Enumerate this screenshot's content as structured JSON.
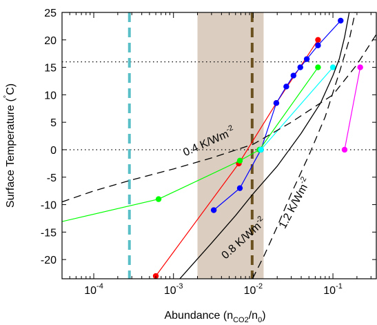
{
  "chart_data": {
    "type": "line",
    "xscale": "log",
    "xlim": [
      4e-05,
      0.35
    ],
    "ylim": [
      -23.5,
      25
    ],
    "x_tick_labels": [
      {
        "value": 0.0001,
        "base": "10",
        "exp": "-4"
      },
      {
        "value": 0.001,
        "base": "10",
        "exp": "-3"
      },
      {
        "value": 0.01,
        "base": "10",
        "exp": "-2"
      },
      {
        "value": 0.1,
        "base": "10",
        "exp": "-1"
      }
    ],
    "y_ticks": [
      -20,
      -15,
      -10,
      -5,
      0,
      5,
      10,
      15,
      20,
      25
    ],
    "ylabel": {
      "pre": "Surface Temperature (",
      "sup": "°",
      "post": "C)"
    },
    "xlabel": {
      "pre": "Abundance (n",
      "sub1": "CO2",
      "mid": "/n",
      "sub2": "0",
      "post": ")"
    },
    "colors": {
      "shade": "#dbcdbf",
      "cyan_dash": "#5bbfc8",
      "brown_dash": "#6b5120",
      "red": "#ff0000",
      "blue": "#0000ff",
      "green": "#00ff00",
      "cyan": "#00ffff",
      "magenta": "#ff00ff",
      "black": "#000000"
    },
    "shaded_band": [
      0.002,
      0.0135
    ],
    "vertical_lines": [
      {
        "x": 0.00028,
        "color": "cyan_dash"
      },
      {
        "x": 0.0097,
        "color": "brown_dash"
      }
    ],
    "hlines": [
      0,
      16
    ],
    "series": [
      {
        "color": "red",
        "markers": true,
        "x": [
          0.0006,
          0.0066,
          0.0195,
          0.065
        ],
        "y": [
          -23,
          -2.5,
          8.5,
          20
        ]
      },
      {
        "color": "blue",
        "markers": true,
        "x": [
          0.0032,
          0.0068,
          0.0125,
          0.0195,
          0.026,
          0.032,
          0.039,
          0.047,
          0.065,
          0.125
        ],
        "y": [
          -11,
          -7,
          0,
          8.5,
          11.5,
          13.5,
          15,
          16.5,
          19,
          23.5
        ]
      },
      {
        "color": "green",
        "markers": true,
        "x": [
          3e-05,
          0.00065,
          0.0068,
          0.012,
          0.065
        ],
        "y": [
          -13.5,
          -9,
          -2,
          0,
          15
        ]
      },
      {
        "color": "cyan",
        "markers": true,
        "x": [
          0.0125,
          0.1
        ],
        "y": [
          0,
          15
        ]
      },
      {
        "color": "magenta",
        "markers": true,
        "x": [
          0.14,
          0.22
        ],
        "y": [
          0,
          15
        ]
      },
      {
        "color": "black",
        "style": "solid",
        "markers": false,
        "x": [
          0.0012,
          0.003,
          0.006,
          0.01,
          0.02,
          0.04,
          0.07,
          0.1,
          0.12,
          0.14,
          0.16
        ],
        "y": [
          -23.5,
          -17,
          -12,
          -8,
          -3,
          3,
          8.5,
          13.5,
          16.5,
          20.5,
          25
        ]
      },
      {
        "color": "black",
        "style": "dashed",
        "markers": false,
        "x": [
          4e-05,
          0.0001,
          0.0003,
          0.001,
          0.003,
          0.01,
          0.03,
          0.1,
          0.2,
          0.35
        ],
        "y": [
          -9.5,
          -7.5,
          -5.5,
          -3.5,
          -1.5,
          1,
          5,
          10,
          15.5,
          21
        ]
      },
      {
        "color": "black",
        "style": "dashed",
        "markers": false,
        "x": [
          0.0098,
          0.014,
          0.02,
          0.03,
          0.05,
          0.08,
          0.12,
          0.16,
          0.19
        ],
        "y": [
          -23.5,
          -19,
          -14,
          -8,
          -1,
          6,
          14,
          20,
          25
        ]
      }
    ],
    "annotations": [
      {
        "text": "0.4 K/Wm",
        "sup": "-2",
        "x": 0.0014,
        "y": -1.2,
        "rotate": -24
      },
      {
        "text": "0.8 K/Wm",
        "sup": "-2",
        "x": 0.0045,
        "y": -20,
        "rotate": -42
      },
      {
        "text": "1.2 K/Wm",
        "sup": "-2",
        "x": 0.025,
        "y": -14.5,
        "rotate": -62
      }
    ]
  }
}
